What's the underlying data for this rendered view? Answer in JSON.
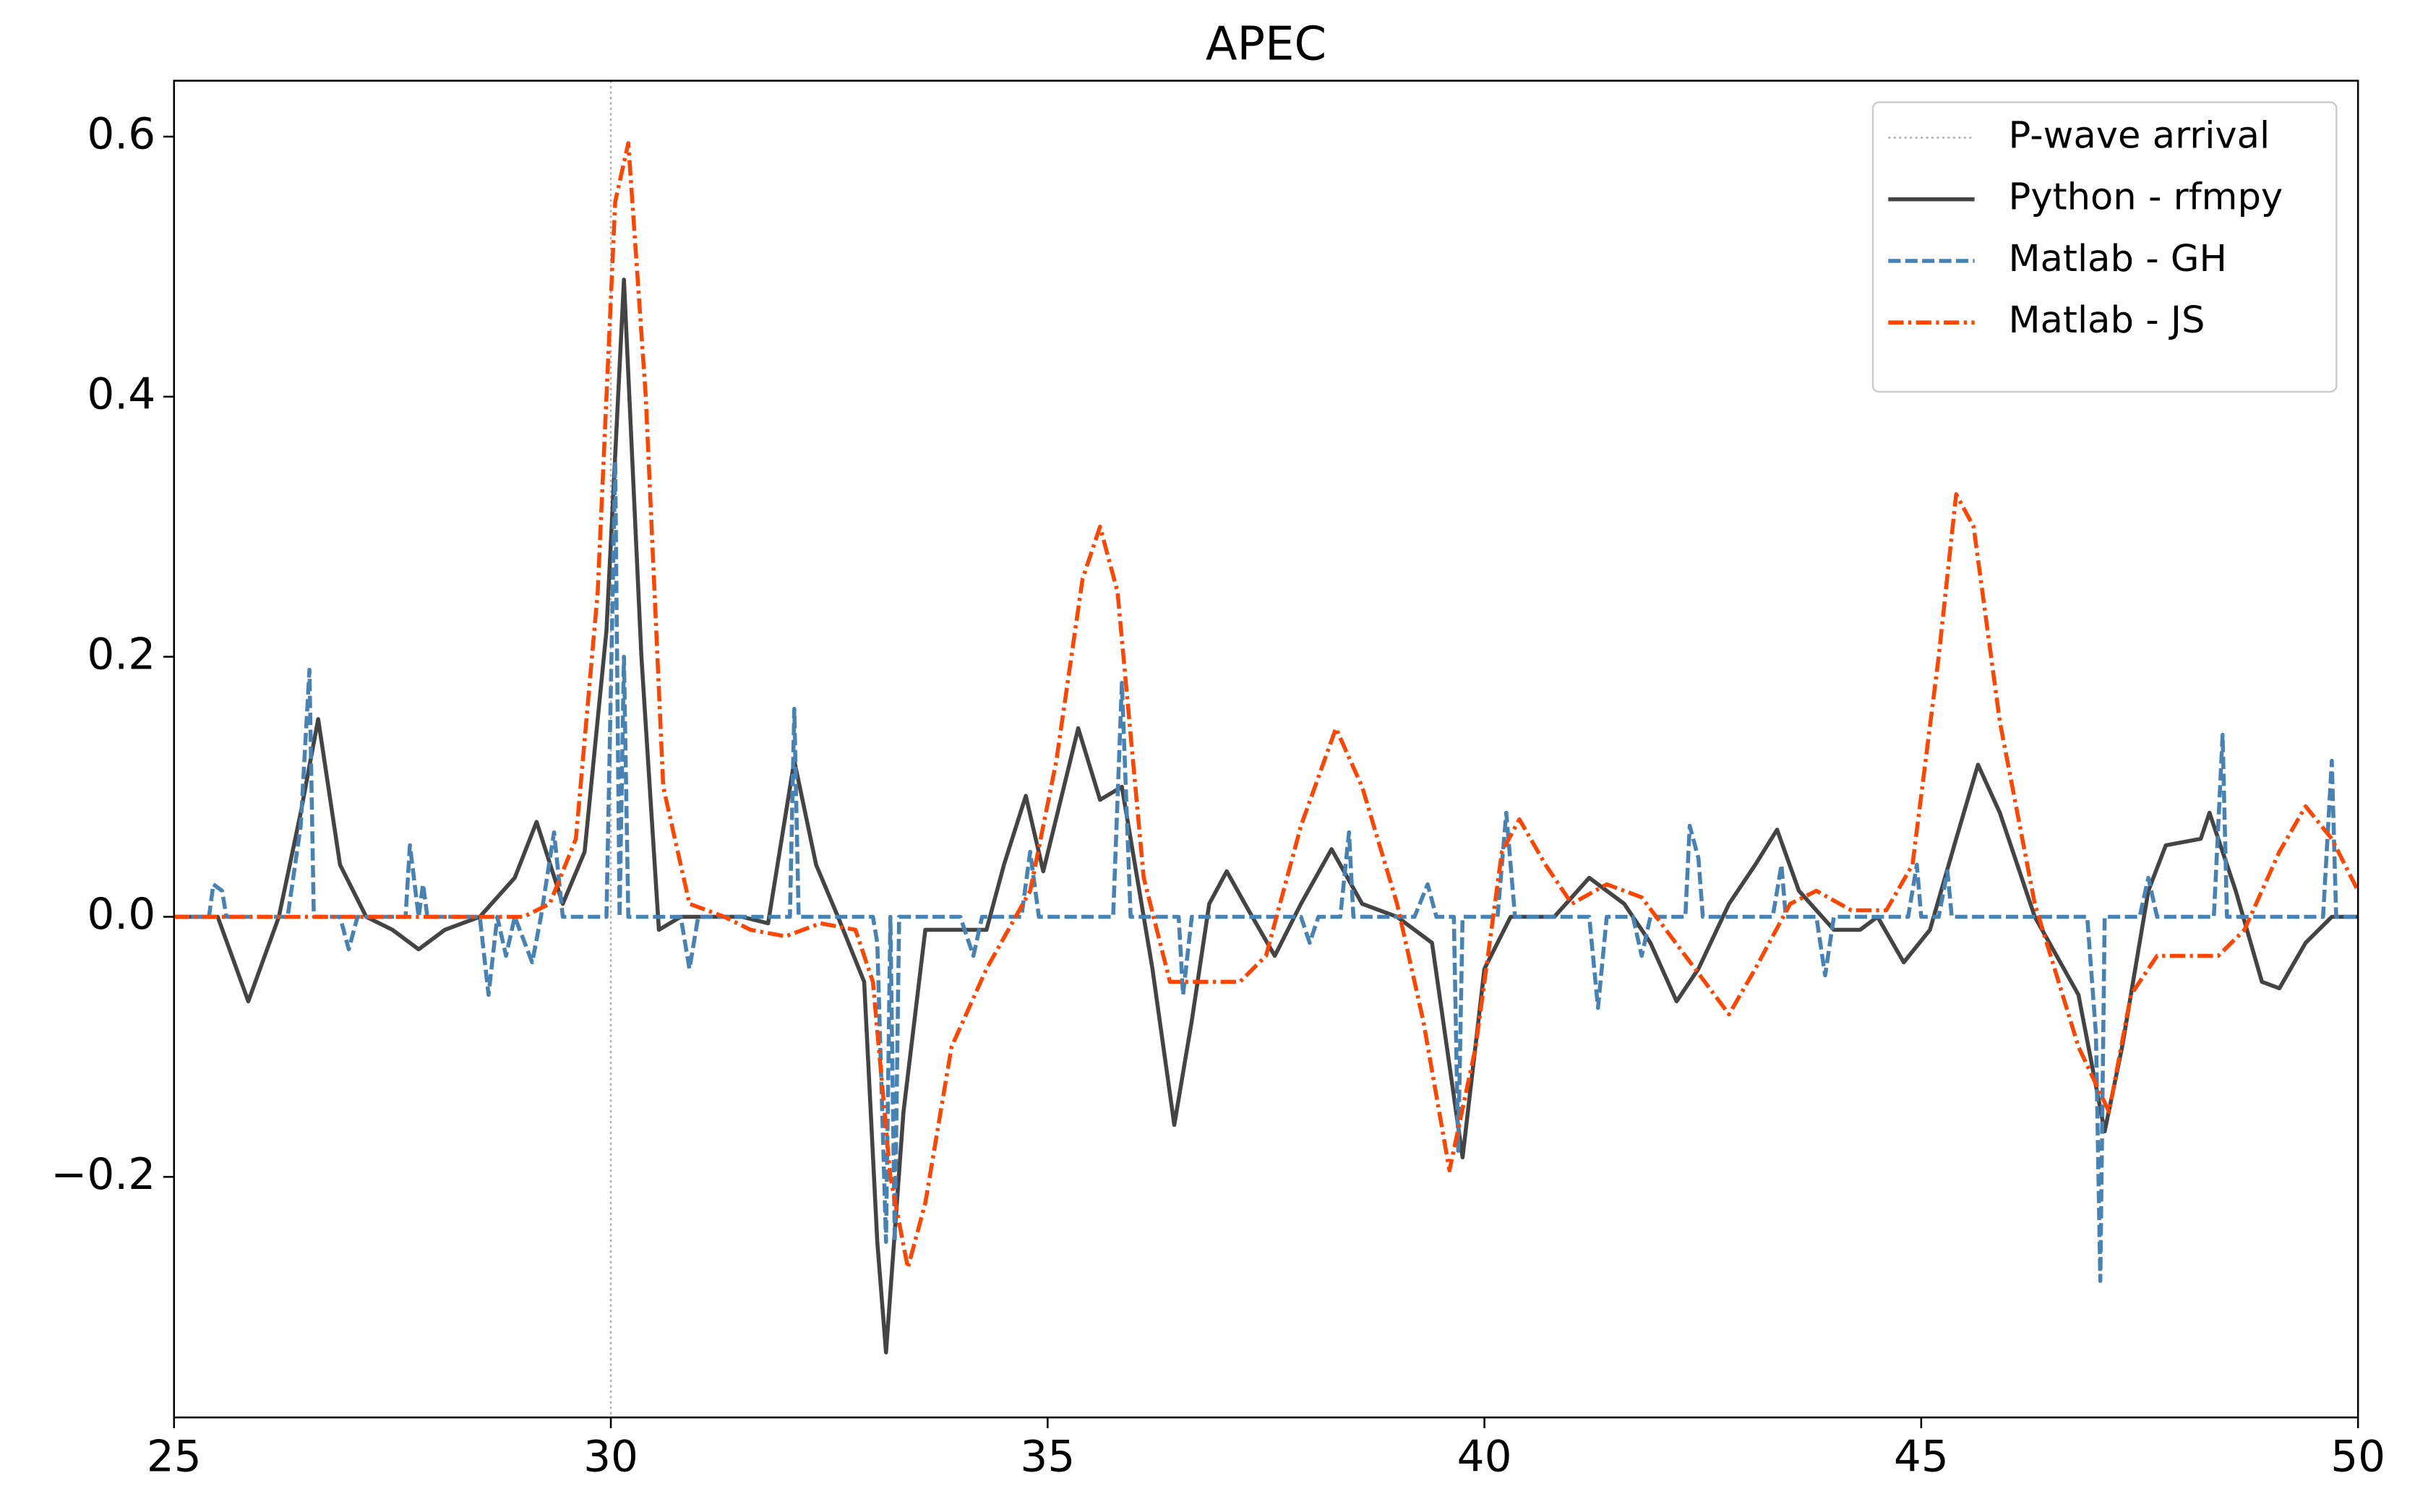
{
  "chart_data": {
    "type": "line",
    "title": "APEC",
    "xlim": [
      25,
      50
    ],
    "xticks": [
      25,
      30,
      35,
      40,
      45,
      50
    ],
    "ylim": [
      -0.385,
      0.643
    ],
    "yticks": [
      {
        "value": -0.2,
        "label": "−0.2"
      },
      {
        "value": 0,
        "label": "0.0"
      },
      0.2,
      0.4,
      0.6
    ],
    "legend": "upper right",
    "vlines": [
      {
        "name": "P-wave arrival",
        "x": 30,
        "color": "#b0b0b0",
        "style": "dotted"
      }
    ],
    "series": [
      {
        "name": "Python - rfmpy",
        "color": "#444444",
        "style": "solid",
        "x": [
          25,
          25.5,
          25.85,
          26.2,
          26.45,
          26.65,
          26.9,
          27.2,
          27.5,
          27.8,
          28.1,
          28.5,
          28.9,
          29.15,
          29.45,
          29.7,
          29.95,
          30.15,
          30.35,
          30.55,
          30.8,
          31.5,
          31.8,
          32.1,
          32.35,
          32.6,
          32.9,
          33.05,
          33.15,
          33.35,
          33.6,
          34,
          34.3,
          34.5,
          34.75,
          34.95,
          35.15,
          35.35,
          35.6,
          35.85,
          36.2,
          36.45,
          36.65,
          36.85,
          37.05,
          37.3,
          37.6,
          37.9,
          38.25,
          38.6,
          39,
          39.4,
          39.75,
          40,
          40.3,
          40.8,
          41.2,
          41.6,
          41.9,
          42.2,
          42.45,
          42.8,
          43.1,
          43.35,
          43.6,
          44,
          44.3,
          44.5,
          44.8,
          45.1,
          45.4,
          45.65,
          45.9,
          46.3,
          46.8,
          47.1,
          47.3,
          47.6,
          47.8,
          48.2,
          48.3,
          48.6,
          48.9,
          49.1,
          49.4,
          49.7,
          50
        ],
        "values": [
          0,
          0,
          -0.065,
          0,
          0.08,
          0.152,
          0.04,
          0,
          -0.01,
          -0.025,
          -0.01,
          0,
          0.03,
          0.073,
          0.01,
          0.05,
          0.22,
          0.49,
          0.2,
          -0.01,
          0,
          0,
          -0.005,
          0.12,
          0.04,
          0,
          -0.05,
          -0.25,
          -0.335,
          -0.15,
          -0.01,
          -0.01,
          -0.01,
          0.04,
          0.093,
          0.035,
          0.09,
          0.145,
          0.09,
          0.1,
          -0.04,
          -0.16,
          -0.08,
          0.01,
          0.035,
          0.005,
          -0.03,
          0.01,
          0.052,
          0.01,
          0,
          -0.02,
          -0.185,
          -0.04,
          0,
          0,
          0.03,
          0.01,
          -0.02,
          -0.065,
          -0.04,
          0.01,
          0.04,
          0.067,
          0.02,
          -0.01,
          -0.01,
          0,
          -0.035,
          -0.01,
          0.06,
          0.117,
          0.08,
          0,
          -0.06,
          -0.165,
          -0.1,
          0.02,
          0.055,
          0.06,
          0.08,
          0.02,
          -0.05,
          -0.055,
          -0.02,
          0,
          0
        ]
      },
      {
        "name": "Matlab - GH",
        "color": "#4682b4",
        "style": "dashed",
        "x": [
          25,
          25.4,
          25.45,
          25.55,
          25.6,
          26.3,
          26.45,
          26.55,
          26.6,
          26.9,
          27,
          27.1,
          27.65,
          27.7,
          27.8,
          27.85,
          27.9,
          28.5,
          28.6,
          28.7,
          28.8,
          28.9,
          29.1,
          29.2,
          29.35,
          29.45,
          29.95,
          30.05,
          30.1,
          30.15,
          30.2,
          30.8,
          30.9,
          31,
          32.05,
          32.1,
          32.15,
          33,
          33.05,
          33.15,
          33.2,
          33.25,
          33.3,
          34,
          34.15,
          34.25,
          34.7,
          34.8,
          34.9,
          35.75,
          35.85,
          35.95,
          36.5,
          36.55,
          36.65,
          37.9,
          38,
          38.1,
          38.35,
          38.45,
          38.5,
          39.2,
          39.35,
          39.45,
          39.65,
          39.7,
          39.75,
          40.15,
          40.25,
          40.35,
          41.2,
          41.3,
          41.4,
          41.7,
          41.8,
          41.9,
          42.3,
          42.35,
          42.45,
          42.5,
          43.3,
          43.4,
          43.45,
          43.8,
          43.9,
          44,
          44.85,
          44.95,
          45,
          45.2,
          45.3,
          45.35,
          46.9,
          47,
          47.05,
          47.1,
          47.5,
          47.6,
          47.7,
          48.35,
          48.45,
          48.5,
          49.6,
          49.7,
          49.75,
          50
        ],
        "values": [
          0,
          0,
          0.025,
          0.02,
          0,
          0,
          0.07,
          0.19,
          0,
          0,
          -0.025,
          0,
          0,
          0.055,
          0,
          0.025,
          0,
          0,
          -0.06,
          0,
          -0.03,
          0,
          -0.035,
          0,
          0.065,
          0,
          0,
          0.35,
          0,
          0.2,
          0,
          0,
          -0.04,
          0,
          0,
          0.16,
          0,
          0,
          -0.02,
          -0.25,
          0,
          -0.25,
          0,
          0,
          -0.03,
          0,
          0,
          0.05,
          0,
          0,
          0.18,
          0,
          0,
          -0.06,
          0,
          0,
          -0.02,
          0,
          0,
          0.065,
          0,
          0,
          0.025,
          0,
          0,
          -0.18,
          0,
          0,
          0.08,
          0,
          0,
          -0.07,
          0,
          0,
          -0.03,
          0,
          0,
          0.07,
          0.045,
          0,
          0,
          0.04,
          0,
          0,
          -0.045,
          0,
          0,
          0.04,
          0,
          0,
          0.035,
          0,
          0,
          -0.09,
          -0.28,
          0,
          0,
          0.03,
          0,
          0,
          0.14,
          0,
          0,
          0.12,
          0,
          0
        ]
      },
      {
        "name": "Matlab - JS",
        "color": "#ff4500",
        "style": "dashdot",
        "x": [
          25,
          28,
          29,
          29.3,
          29.6,
          29.85,
          30.05,
          30.2,
          30.4,
          30.6,
          30.9,
          31.3,
          31.6,
          32,
          32.4,
          32.8,
          33,
          33.2,
          33.4,
          33.6,
          33.9,
          34.3,
          34.8,
          35.1,
          35.4,
          35.6,
          35.8,
          36.1,
          36.4,
          36.8,
          37.2,
          37.5,
          37.9,
          38.3,
          38.6,
          39,
          39.3,
          39.6,
          39.9,
          40.2,
          40.4,
          40.7,
          41,
          41.4,
          41.8,
          42.3,
          42.8,
          43.1,
          43.5,
          43.8,
          44.2,
          44.6,
          44.9,
          45.2,
          45.4,
          45.6,
          45.9,
          46.3,
          46.8,
          47.15,
          47.4,
          47.7,
          48.1,
          48.4,
          48.7,
          49.1,
          49.4,
          49.7,
          50
        ],
        "values": [
          0,
          0,
          0,
          0.01,
          0.06,
          0.25,
          0.55,
          0.595,
          0.4,
          0.1,
          0.01,
          0,
          -0.01,
          -0.015,
          -0.005,
          -0.01,
          -0.05,
          -0.2,
          -0.27,
          -0.22,
          -0.1,
          -0.04,
          0.02,
          0.12,
          0.26,
          0.3,
          0.25,
          0.03,
          -0.05,
          -0.05,
          -0.05,
          -0.03,
          0.07,
          0.145,
          0.1,
          0.01,
          -0.08,
          -0.195,
          -0.1,
          0.05,
          0.075,
          0.04,
          0.01,
          0.025,
          0.015,
          -0.03,
          -0.075,
          -0.04,
          0.01,
          0.02,
          0.005,
          0.005,
          0.04,
          0.2,
          0.325,
          0.3,
          0.15,
          0.01,
          -0.1,
          -0.15,
          -0.06,
          -0.03,
          -0.03,
          -0.03,
          -0.01,
          0.05,
          0.085,
          0.06,
          0.02
        ]
      }
    ]
  }
}
